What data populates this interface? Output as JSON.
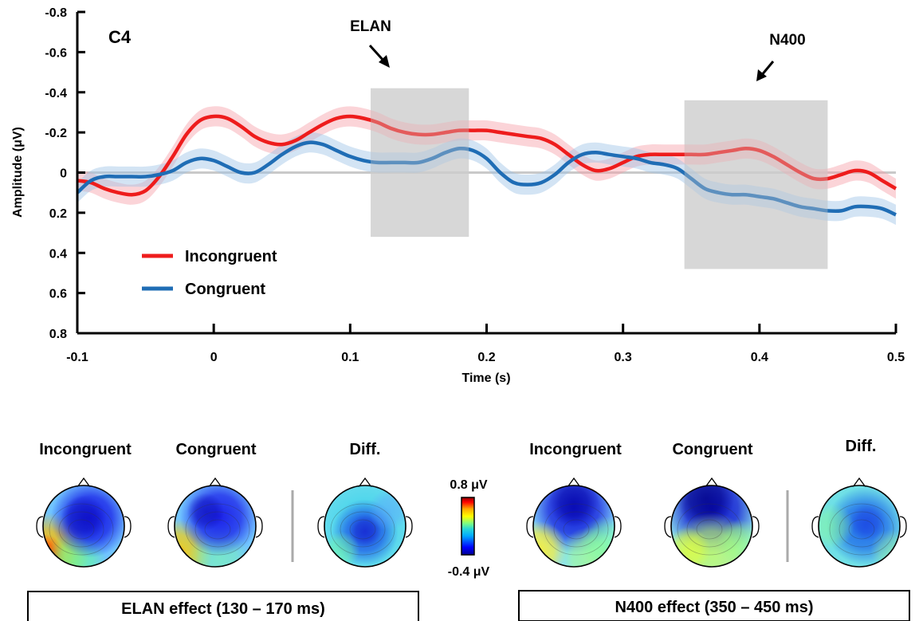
{
  "chart_data": [
    {
      "type": "line",
      "title": "C4",
      "xlabel": "Time (s)",
      "ylabel": "Amplitude (μV)",
      "xlim": [
        -0.1,
        0.5
      ],
      "ylim": [
        -0.8,
        0.8
      ],
      "y_inverted": true,
      "x_ticks": [
        "-0.1",
        "0",
        "0.1",
        "0.2",
        "0.3",
        "0.4",
        "0.5"
      ],
      "y_ticks": [
        "-0.8",
        "-0.6",
        "-0.4",
        "-0.2",
        "0",
        "0.2",
        "0.4",
        "0.6",
        "0.8"
      ],
      "legend_position": "lower-left",
      "series": [
        {
          "name": "Incongruent",
          "color": "#ee1c1c",
          "x": [
            -0.1,
            -0.09,
            -0.08,
            -0.07,
            -0.06,
            -0.05,
            -0.04,
            -0.03,
            -0.02,
            -0.01,
            0,
            0.01,
            0.02,
            0.03,
            0.04,
            0.05,
            0.06,
            0.07,
            0.08,
            0.09,
            0.1,
            0.11,
            0.12,
            0.13,
            0.14,
            0.15,
            0.16,
            0.17,
            0.18,
            0.19,
            0.2,
            0.21,
            0.22,
            0.23,
            0.24,
            0.25,
            0.26,
            0.27,
            0.28,
            0.29,
            0.3,
            0.31,
            0.32,
            0.33,
            0.34,
            0.35,
            0.36,
            0.37,
            0.38,
            0.39,
            0.4,
            0.41,
            0.42,
            0.43,
            0.44,
            0.45,
            0.46,
            0.47,
            0.48,
            0.49,
            0.5
          ],
          "y": [
            0.04,
            0.05,
            0.08,
            0.1,
            0.11,
            0.09,
            0.02,
            -0.08,
            -0.19,
            -0.26,
            -0.28,
            -0.27,
            -0.23,
            -0.18,
            -0.15,
            -0.14,
            -0.16,
            -0.2,
            -0.24,
            -0.27,
            -0.28,
            -0.27,
            -0.25,
            -0.22,
            -0.2,
            -0.19,
            -0.19,
            -0.2,
            -0.21,
            -0.21,
            -0.21,
            -0.2,
            -0.19,
            -0.18,
            -0.17,
            -0.14,
            -0.09,
            -0.04,
            -0.01,
            -0.02,
            -0.05,
            -0.08,
            -0.09,
            -0.09,
            -0.09,
            -0.09,
            -0.09,
            -0.1,
            -0.11,
            -0.12,
            -0.11,
            -0.08,
            -0.04,
            0,
            0.03,
            0.03,
            0.01,
            -0.01,
            0,
            0.04,
            0.08
          ],
          "error_band": 0.05
        },
        {
          "name": "Congruent",
          "color": "#1f6db5",
          "x": [
            -0.1,
            -0.09,
            -0.08,
            -0.07,
            -0.06,
            -0.05,
            -0.04,
            -0.03,
            -0.02,
            -0.01,
            0,
            0.01,
            0.02,
            0.03,
            0.04,
            0.05,
            0.06,
            0.07,
            0.08,
            0.09,
            0.1,
            0.11,
            0.12,
            0.13,
            0.14,
            0.15,
            0.16,
            0.17,
            0.18,
            0.19,
            0.2,
            0.21,
            0.22,
            0.23,
            0.24,
            0.25,
            0.26,
            0.27,
            0.28,
            0.29,
            0.3,
            0.31,
            0.32,
            0.33,
            0.34,
            0.35,
            0.36,
            0.37,
            0.38,
            0.39,
            0.4,
            0.41,
            0.42,
            0.43,
            0.44,
            0.45,
            0.46,
            0.47,
            0.48,
            0.49,
            0.5
          ],
          "y": [
            0.1,
            0.04,
            0.02,
            0.02,
            0.02,
            0.02,
            0.01,
            -0.01,
            -0.05,
            -0.07,
            -0.06,
            -0.03,
            0,
            0,
            -0.04,
            -0.09,
            -0.13,
            -0.15,
            -0.14,
            -0.11,
            -0.08,
            -0.06,
            -0.05,
            -0.05,
            -0.05,
            -0.05,
            -0.07,
            -0.1,
            -0.12,
            -0.11,
            -0.07,
            0,
            0.05,
            0.06,
            0.05,
            0.01,
            -0.05,
            -0.09,
            -0.1,
            -0.09,
            -0.08,
            -0.07,
            -0.05,
            -0.04,
            -0.02,
            0.03,
            0.08,
            0.1,
            0.11,
            0.11,
            0.12,
            0.13,
            0.15,
            0.17,
            0.18,
            0.19,
            0.19,
            0.17,
            0.17,
            0.18,
            0.21
          ],
          "error_band": 0.05
        }
      ],
      "windows": [
        {
          "x": [
            0.115,
            0.187
          ],
          "y": [
            -0.42,
            0.32
          ],
          "label": "ELAN"
        },
        {
          "x": [
            0.345,
            0.45
          ],
          "y": [
            -0.36,
            0.48
          ],
          "label": "N400"
        }
      ]
    },
    {
      "type": "heatmap",
      "colorbar": {
        "max_label": "0.8 μV",
        "min_label": "-0.4 μV",
        "max": 0.8,
        "min": -0.4,
        "colors": [
          "#00008f",
          "#0000ff",
          "#00aaff",
          "#28d8d8",
          "#7fff7f",
          "#ffff00",
          "#ffaa00",
          "#ff0000",
          "#8f0000"
        ]
      },
      "groups": [
        {
          "caption": "ELAN effect (130 – 170 ms)",
          "maps": [
            {
              "title": "Incongruent"
            },
            {
              "title": "Congruent"
            },
            {
              "title": "Diff."
            }
          ]
        },
        {
          "caption": "N400 effect (350 – 450 ms)",
          "maps": [
            {
              "title": "Incongruent"
            },
            {
              "title": "Congruent"
            },
            {
              "title": "Diff."
            }
          ]
        }
      ]
    }
  ]
}
